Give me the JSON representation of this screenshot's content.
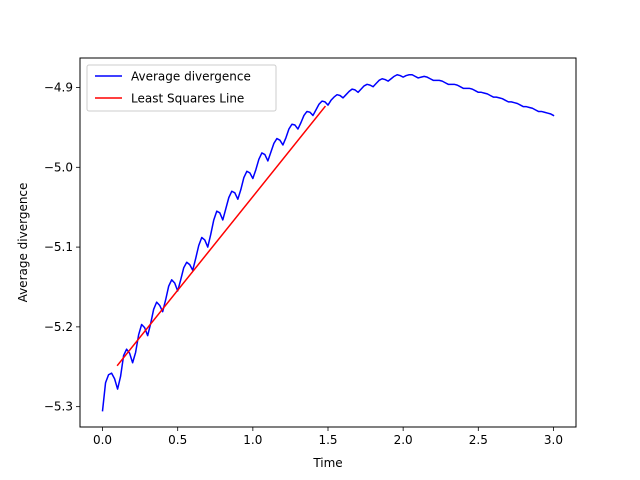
{
  "chart_data": {
    "type": "line",
    "title": "",
    "xlabel": "Time",
    "ylabel": "Average divergence",
    "xlim": [
      -0.15,
      3.15
    ],
    "ylim": [
      -5.3255,
      -4.863
    ],
    "xticks": [
      0.0,
      0.5,
      1.0,
      1.5,
      2.0,
      2.5,
      3.0
    ],
    "xtick_labels": [
      "0.0",
      "0.5",
      "1.0",
      "1.5",
      "2.0",
      "2.5",
      "3.0"
    ],
    "yticks": [
      -5.3,
      -5.2,
      -5.1,
      -5.0,
      -4.9
    ],
    "ytick_labels": [
      "−5.3",
      "−5.2",
      "−5.1",
      "−5.0",
      "−4.9"
    ],
    "grid": false,
    "legend_position": "upper-left",
    "series": [
      {
        "name": "Average divergence",
        "color": "#0000ff",
        "x": [
          0.0,
          0.02,
          0.04,
          0.06,
          0.08,
          0.1,
          0.12,
          0.14,
          0.16,
          0.18,
          0.2,
          0.22,
          0.24,
          0.26,
          0.28,
          0.3,
          0.32,
          0.34,
          0.36,
          0.38,
          0.4,
          0.42,
          0.44,
          0.46,
          0.48,
          0.5,
          0.52,
          0.54,
          0.56,
          0.58,
          0.6,
          0.62,
          0.64,
          0.66,
          0.68,
          0.7,
          0.72,
          0.74,
          0.76,
          0.78,
          0.8,
          0.82,
          0.84,
          0.86,
          0.88,
          0.9,
          0.92,
          0.94,
          0.96,
          0.98,
          1.0,
          1.02,
          1.04,
          1.06,
          1.08,
          1.1,
          1.12,
          1.14,
          1.16,
          1.18,
          1.2,
          1.22,
          1.24,
          1.26,
          1.28,
          1.3,
          1.32,
          1.34,
          1.36,
          1.38,
          1.4,
          1.42,
          1.44,
          1.46,
          1.48,
          1.5,
          1.52,
          1.54,
          1.56,
          1.58,
          1.6,
          1.62,
          1.64,
          1.66,
          1.68,
          1.7,
          1.72,
          1.74,
          1.76,
          1.78,
          1.8,
          1.82,
          1.84,
          1.86,
          1.88,
          1.9,
          1.92,
          1.94,
          1.96,
          1.98,
          2.0,
          2.02,
          2.04,
          2.06,
          2.08,
          2.1,
          2.12,
          2.14,
          2.16,
          2.18,
          2.2,
          2.22,
          2.24,
          2.26,
          2.28,
          2.3,
          2.32,
          2.34,
          2.36,
          2.38,
          2.4,
          2.42,
          2.44,
          2.46,
          2.48,
          2.5,
          2.52,
          2.54,
          2.56,
          2.58,
          2.6,
          2.62,
          2.64,
          2.66,
          2.68,
          2.7,
          2.72,
          2.74,
          2.76,
          2.78,
          2.8,
          2.82,
          2.84,
          2.86,
          2.88,
          2.9,
          2.92,
          2.94,
          2.96,
          2.98,
          3.0
        ],
        "values": [
          -5.305,
          -5.27,
          -5.26,
          -5.258,
          -5.265,
          -5.278,
          -5.262,
          -5.236,
          -5.228,
          -5.233,
          -5.245,
          -5.232,
          -5.21,
          -5.197,
          -5.201,
          -5.211,
          -5.196,
          -5.178,
          -5.169,
          -5.173,
          -5.181,
          -5.166,
          -5.149,
          -5.141,
          -5.145,
          -5.155,
          -5.141,
          -5.126,
          -5.119,
          -5.122,
          -5.129,
          -5.114,
          -5.098,
          -5.088,
          -5.091,
          -5.1,
          -5.084,
          -5.066,
          -5.055,
          -5.057,
          -5.066,
          -5.052,
          -5.038,
          -5.03,
          -5.032,
          -5.04,
          -5.028,
          -5.013,
          -5.005,
          -5.007,
          -5.014,
          -5.003,
          -4.99,
          -4.982,
          -4.984,
          -4.992,
          -4.981,
          -4.97,
          -4.964,
          -4.966,
          -4.972,
          -4.963,
          -4.952,
          -4.946,
          -4.947,
          -4.952,
          -4.944,
          -4.935,
          -4.93,
          -4.931,
          -4.935,
          -4.928,
          -4.921,
          -4.917,
          -4.918,
          -4.922,
          -4.916,
          -4.912,
          -4.909,
          -4.91,
          -4.913,
          -4.909,
          -4.905,
          -4.902,
          -4.903,
          -4.906,
          -4.902,
          -4.898,
          -4.896,
          -4.897,
          -4.899,
          -4.895,
          -4.891,
          -4.889,
          -4.89,
          -4.892,
          -4.889,
          -4.886,
          -4.884,
          -4.885,
          -4.887,
          -4.885,
          -4.884,
          -4.884,
          -4.886,
          -4.888,
          -4.887,
          -4.886,
          -4.887,
          -4.889,
          -4.891,
          -4.891,
          -4.891,
          -4.892,
          -4.894,
          -4.896,
          -4.896,
          -4.896,
          -4.897,
          -4.899,
          -4.901,
          -4.901,
          -4.901,
          -4.902,
          -4.904,
          -4.906,
          -4.906,
          -4.907,
          -4.908,
          -4.91,
          -4.912,
          -4.912,
          -4.913,
          -4.914,
          -4.916,
          -4.918,
          -4.918,
          -4.919,
          -4.92,
          -4.922,
          -4.924,
          -4.924,
          -4.925,
          -4.926,
          -4.928,
          -4.93,
          -4.93,
          -4.931,
          -4.932,
          -4.933,
          -4.935
        ]
      },
      {
        "name": "Least Squares Line",
        "color": "#ff0000",
        "x": [
          0.1,
          1.48
        ],
        "values": [
          -5.248,
          -4.924
        ]
      }
    ]
  }
}
